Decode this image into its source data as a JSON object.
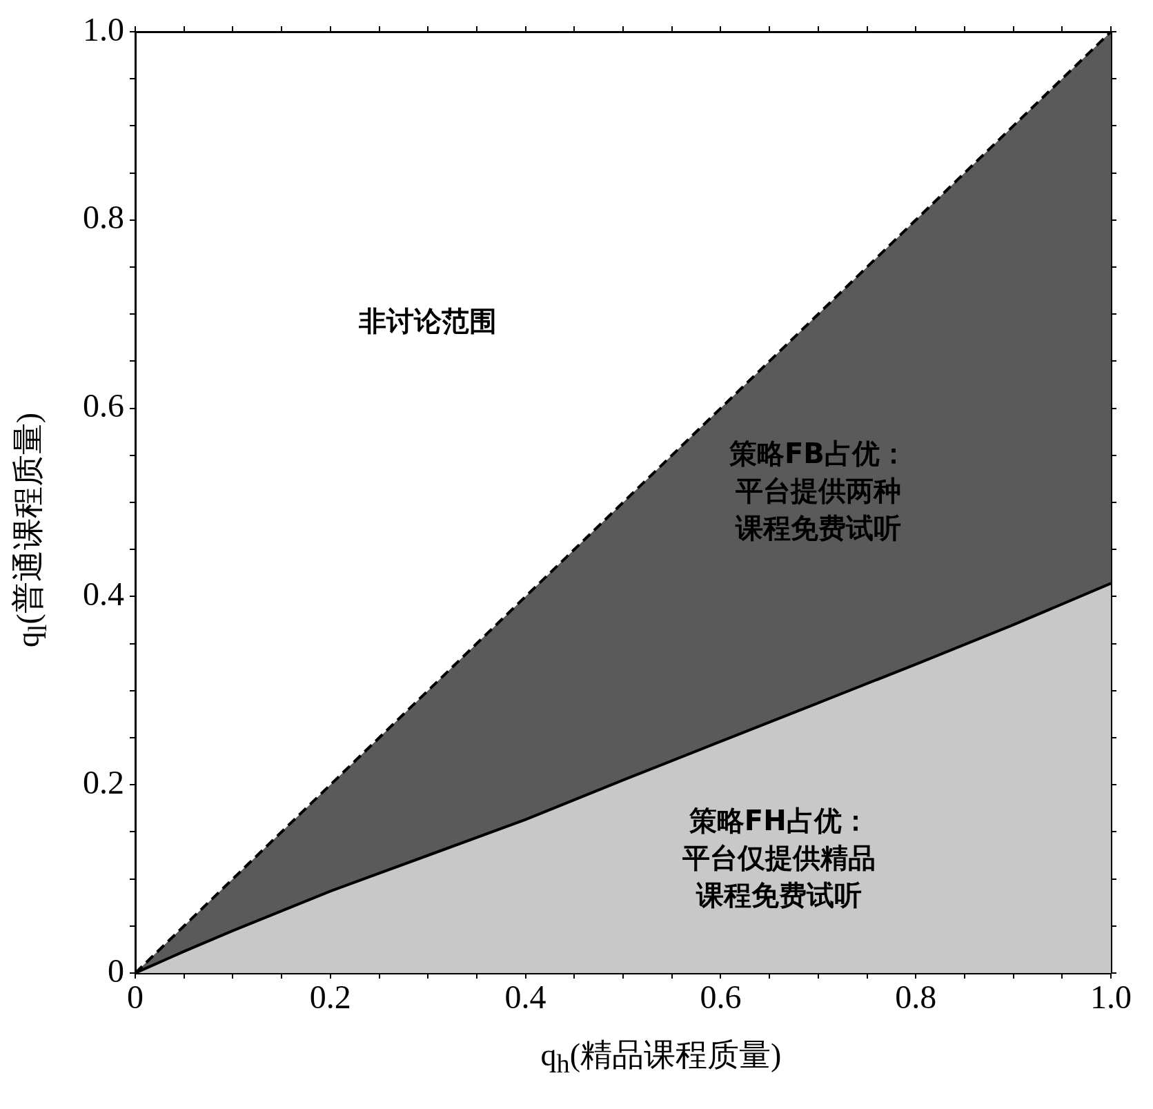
{
  "chart_data": {
    "type": "area",
    "xlabel": "q$_{h}$(精品课程质量)",
    "ylabel": "q$_{l}$(普通课程质量)",
    "x": [
      0,
      0.05,
      0.1,
      0.2,
      0.3,
      0.4,
      0.5,
      0.6,
      0.7,
      0.8,
      0.9,
      1
    ],
    "series": [
      {
        "color": "#c8c8c8",
        "line_style": "solid",
        "values": [
          0,
          0.023,
          0.045,
          0.087,
          0.125,
          0.163,
          0.205,
          0.246,
          0.287,
          0.328,
          0.37,
          0.414
        ]
      },
      {
        "color": "#5a5a5a",
        "line_style": "dashed",
        "values": [
          0,
          0.05,
          0.1,
          0.2,
          0.3,
          0.4,
          0.5,
          0.6,
          0.7,
          0.8,
          0.9,
          1
        ]
      }
    ],
    "xlim": [
      0,
      1
    ],
    "ylim": [
      0,
      1
    ],
    "xticks": [
      0,
      {
        "value": 0.05,
        "label": null
      },
      {
        "value": 0.1,
        "label": null
      },
      {
        "value": 0.15,
        "label": null
      },
      0.2,
      {
        "value": 0.25,
        "label": null
      },
      {
        "value": 0.3,
        "label": null
      },
      {
        "value": 0.35,
        "label": null
      },
      0.4,
      {
        "value": 0.45,
        "label": null
      },
      {
        "value": 0.5,
        "label": null
      },
      {
        "value": 0.55,
        "label": null
      },
      0.6,
      {
        "value": 0.65,
        "label": null
      },
      {
        "value": 0.7,
        "label": null
      },
      {
        "value": 0.75,
        "label": null
      },
      0.8,
      {
        "value": 0.85,
        "label": null
      },
      {
        "value": 0.9,
        "label": null
      },
      {
        "value": 0.95,
        "label": null
      },
      {
        "value": 1,
        "label": "1.0"
      }
    ],
    "yticks": [
      0,
      {
        "value": 0.05,
        "label": null
      },
      {
        "value": 0.1,
        "label": null
      },
      {
        "value": 0.15,
        "label": null
      },
      0.2,
      {
        "value": 0.25,
        "label": null
      },
      {
        "value": 0.3,
        "label": null
      },
      {
        "value": 0.35,
        "label": null
      },
      0.4,
      {
        "value": 0.45,
        "label": null
      },
      {
        "value": 0.5,
        "label": null
      },
      {
        "value": 0.55,
        "label": null
      },
      0.6,
      {
        "value": 0.65,
        "label": null
      },
      {
        "value": 0.7,
        "label": null
      },
      {
        "value": 0.75,
        "label": null
      },
      0.8,
      {
        "value": 0.85,
        "label": null
      },
      {
        "value": 0.9,
        "label": null
      },
      {
        "value": 0.95,
        "label": null
      },
      {
        "value": 1,
        "label": "1.0"
      }
    ],
    "grid": false,
    "legend": false,
    "annotations": [
      "非讨论范围",
      "策略FB占优：平台提供两种课程免费试听",
      "策略FH占优：平台仅提供精品课程免费试听"
    ]
  }
}
